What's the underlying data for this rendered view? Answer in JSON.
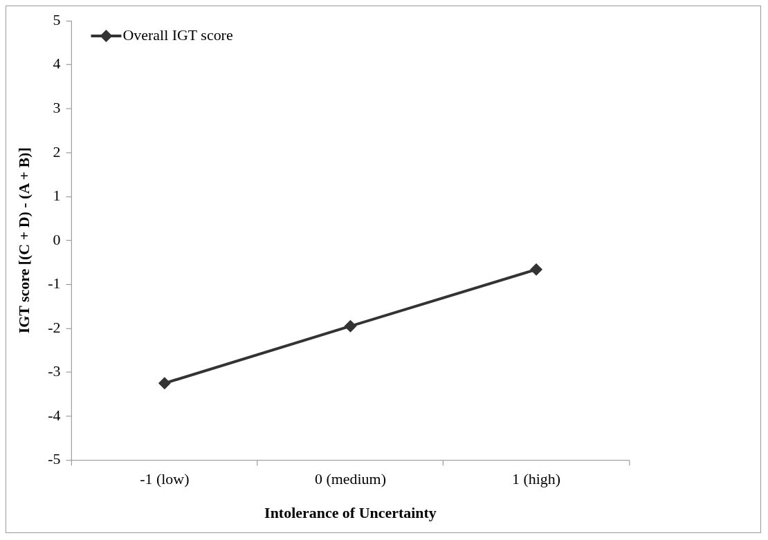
{
  "chart_data": {
    "type": "line",
    "xlabel": "Intolerance of Uncertainty",
    "ylabel": "IGT score [(C + D) - (A + B)]",
    "categories": [
      "-1 (low)",
      "0 (medium)",
      "1 (high)"
    ],
    "series": [
      {
        "name": "Overall IGT score",
        "color": "#333333",
        "values": [
          -3.25,
          -1.95,
          -0.66
        ]
      }
    ],
    "ylim": [
      -5,
      5
    ],
    "yticks": [
      -5,
      -4,
      -3,
      -2,
      -1,
      0,
      1,
      2,
      3,
      4,
      5
    ],
    "legend": "top left",
    "marker": "diamond",
    "line_style": "solid"
  }
}
